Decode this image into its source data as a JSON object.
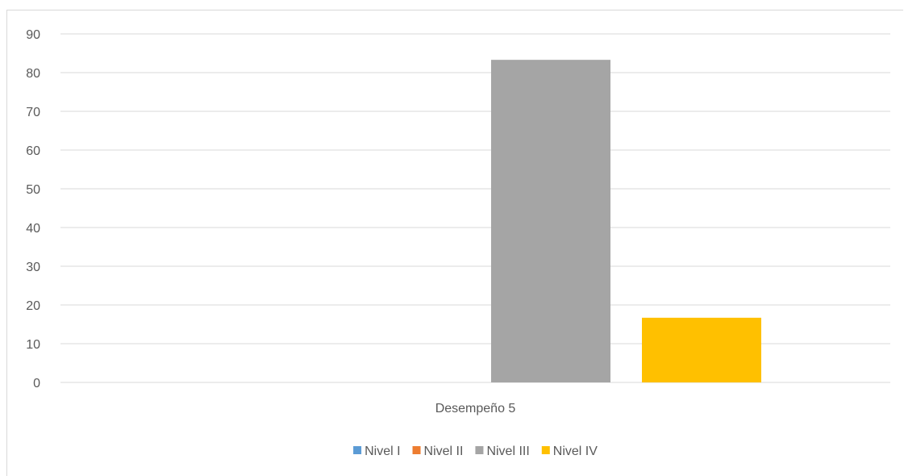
{
  "chart_data": {
    "type": "bar",
    "title": "",
    "xlabel": "",
    "ylabel": "",
    "categories": [
      "Desempeño 5"
    ],
    "series": [
      {
        "name": "Nivel I",
        "values": [
          0
        ],
        "color": "#5b9bd5"
      },
      {
        "name": "Nivel II",
        "values": [
          0
        ],
        "color": "#ed7d31"
      },
      {
        "name": "Nivel III",
        "values": [
          83.3
        ],
        "color": "#a5a5a5"
      },
      {
        "name": "Nivel IV",
        "values": [
          16.7
        ],
        "color": "#ffc000"
      }
    ],
    "ylim": [
      0,
      90
    ],
    "yticks": [
      0,
      10,
      20,
      30,
      40,
      50,
      60,
      70,
      80,
      90
    ],
    "grid": true,
    "legend_position": "bottom",
    "gridline_color": "#d9d9d9",
    "axis_text_color": "#595959"
  }
}
